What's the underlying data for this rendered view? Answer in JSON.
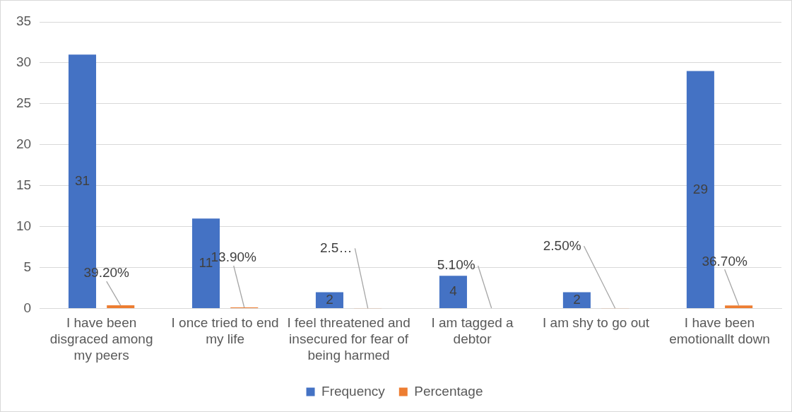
{
  "chart_data": {
    "type": "bar",
    "categories": [
      "I have been disgraced among my peers",
      "I once tried to end my life",
      "I feel threatened and insecured for fear of being harmed",
      "I am tagged a debtor",
      "I am shy to go out",
      "I have been emotionallt down"
    ],
    "series": [
      {
        "name": "Frequency",
        "color": "#4472c4",
        "values": [
          31,
          11,
          2,
          4,
          2,
          29
        ],
        "value_labels": [
          "31",
          "11",
          "2",
          "4",
          "2",
          "29"
        ]
      },
      {
        "name": "Percentage",
        "color": "#ed7d31",
        "values": [
          0.392,
          0.139,
          0.025,
          0.051,
          0.025,
          0.367
        ],
        "value_labels": [
          "39.20%",
          "13.90%",
          "2.5…",
          "5.10%",
          "2.50%",
          "36.70%"
        ]
      }
    ],
    "ylim": [
      0,
      35
    ],
    "yticks": [
      0,
      5,
      10,
      15,
      20,
      25,
      30,
      35
    ],
    "grid": "y",
    "legend": "bottom"
  }
}
